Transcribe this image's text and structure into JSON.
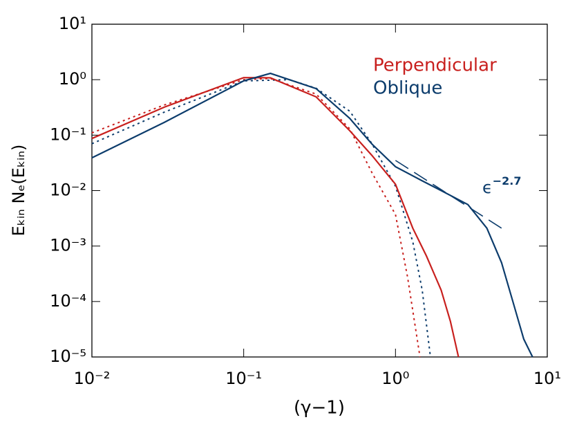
{
  "chart_data": {
    "type": "line",
    "x_label": "(γ−1)",
    "y_label": "Eₖᵢₙ Nₑ(Eₖᵢₙ)",
    "xscale": "log",
    "yscale": "log",
    "xlim": [
      0.01,
      10
    ],
    "ylim": [
      1e-05,
      10
    ],
    "xticks": [
      {
        "value": 0.01,
        "label": "10⁻²"
      },
      {
        "value": 0.1,
        "label": "10⁻¹"
      },
      {
        "value": 1,
        "label": "10⁰"
      },
      {
        "value": 10,
        "label": "10¹"
      }
    ],
    "yticks": [
      {
        "value": 1e-05,
        "label": "10⁻⁵"
      },
      {
        "value": 0.0001,
        "label": "10⁻⁴"
      },
      {
        "value": 0.001,
        "label": "10⁻³"
      },
      {
        "value": 0.01,
        "label": "10⁻²"
      },
      {
        "value": 0.1,
        "label": "10⁻¹"
      },
      {
        "value": 1,
        "label": "10⁰"
      },
      {
        "value": 10,
        "label": "10¹"
      }
    ],
    "legend": "upper right",
    "series": [
      {
        "name": "Perpendicular",
        "color": "#c8201e",
        "x": [
          0.01,
          0.03,
          0.1,
          0.15,
          0.3,
          0.5,
          0.7,
          1,
          1.3,
          1.6,
          2,
          2.3,
          2.6
        ],
        "values": [
          0.087,
          0.32,
          1.09,
          1.08,
          0.49,
          0.12,
          0.043,
          0.013,
          0.0021,
          0.00066,
          0.00016,
          4.4e-05,
          1e-05
        ]
      },
      {
        "name": "Oblique",
        "color": "#0c3c6c",
        "x": [
          0.01,
          0.03,
          0.1,
          0.15,
          0.3,
          0.5,
          0.7,
          1,
          1.5,
          2,
          3,
          4,
          5,
          6,
          7,
          8
        ],
        "values": [
          0.039,
          0.17,
          0.95,
          1.3,
          0.69,
          0.2,
          0.069,
          0.027,
          0.015,
          0.01,
          0.0056,
          0.0021,
          0.0005,
          9e-05,
          2.1e-05,
          1e-05
        ]
      }
    ],
    "fits": [
      {
        "color": "#c8201e",
        "dash": "3 5",
        "x": [
          0.01,
          0.03,
          0.1,
          0.15,
          0.3,
          0.5,
          0.7,
          1,
          1.2,
          1.45
        ],
        "values": [
          0.11,
          0.35,
          1.0,
          1.05,
          0.55,
          0.13,
          0.021,
          0.0037,
          0.00028,
          1e-05
        ]
      },
      {
        "color": "#0c3c6c",
        "dash": "3 5",
        "x": [
          0.01,
          0.03,
          0.1,
          0.2,
          0.3,
          0.5,
          0.7,
          1,
          1.3,
          1.5,
          1.7
        ],
        "values": [
          0.07,
          0.26,
          0.95,
          1.0,
          0.7,
          0.27,
          0.07,
          0.012,
          0.0012,
          0.00016,
          1e-05
        ]
      }
    ],
    "power_law": {
      "color": "#0c3c6c",
      "dash": "22 10",
      "x": [
        1,
        5
      ],
      "values": [
        0.035,
        0.0021
      ]
    },
    "annotation": {
      "text": "ϵ",
      "exponent": "−2.7",
      "color": "#0c3c6c"
    }
  }
}
